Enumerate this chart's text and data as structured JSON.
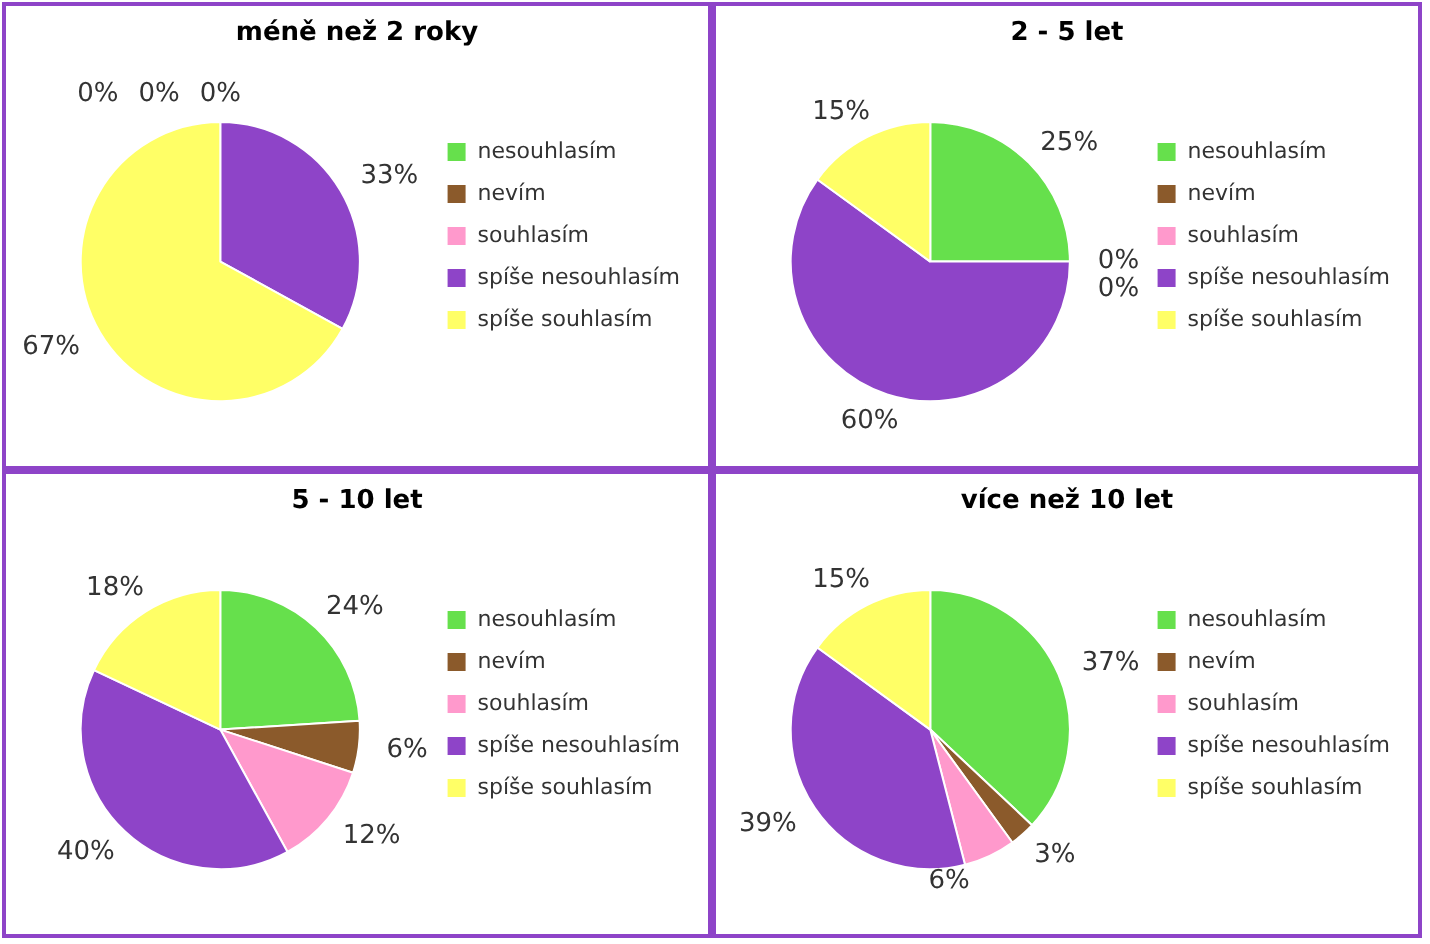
{
  "chart_data": [
    {
      "type": "pie",
      "title": "méně než 2 roky",
      "categories": [
        "nesouhlasím",
        "nevím",
        "souhlasím",
        "spíše nesouhlasím",
        "spíše souhlasím"
      ],
      "values": [
        0,
        0,
        0,
        33,
        67
      ],
      "colors": [
        "#66e04c",
        "#8b5a2b",
        "#ff99cc",
        "#8e44c8",
        "#ffff66"
      ],
      "value_labels": [
        "0%",
        "0%",
        "0%",
        "33%",
        "67%"
      ],
      "legend": "right"
    },
    {
      "type": "pie",
      "title": "2 - 5 let",
      "categories": [
        "nesouhlasím",
        "nevím",
        "souhlasím",
        "spíše nesouhlasím",
        "spíše souhlasím"
      ],
      "values": [
        25,
        0,
        0,
        60,
        15
      ],
      "colors": [
        "#66e04c",
        "#8b5a2b",
        "#ff99cc",
        "#8e44c8",
        "#ffff66"
      ],
      "value_labels": [
        "25%",
        "0%",
        "0%",
        "60%",
        "15%"
      ],
      "legend": "right"
    },
    {
      "type": "pie",
      "title": "5 - 10 let",
      "categories": [
        "nesouhlasím",
        "nevím",
        "souhlasím",
        "spíše nesouhlasím",
        "spíše souhlasím"
      ],
      "values": [
        24,
        6,
        12,
        40,
        18
      ],
      "colors": [
        "#66e04c",
        "#8b5a2b",
        "#ff99cc",
        "#8e44c8",
        "#ffff66"
      ],
      "value_labels": [
        "24%",
        "6%",
        "12%",
        "40%",
        "18%"
      ],
      "legend": "right"
    },
    {
      "type": "pie",
      "title": "více než 10 let",
      "categories": [
        "nesouhlasím",
        "nevím",
        "souhlasím",
        "spíše nesouhlasím",
        "spíše souhlasím"
      ],
      "values": [
        37,
        3,
        6,
        39,
        15
      ],
      "colors": [
        "#66e04c",
        "#8b5a2b",
        "#ff99cc",
        "#8e44c8",
        "#ffff66"
      ],
      "value_labels": [
        "37%",
        "3%",
        "6%",
        "39%",
        "15%"
      ],
      "legend": "right"
    }
  ]
}
